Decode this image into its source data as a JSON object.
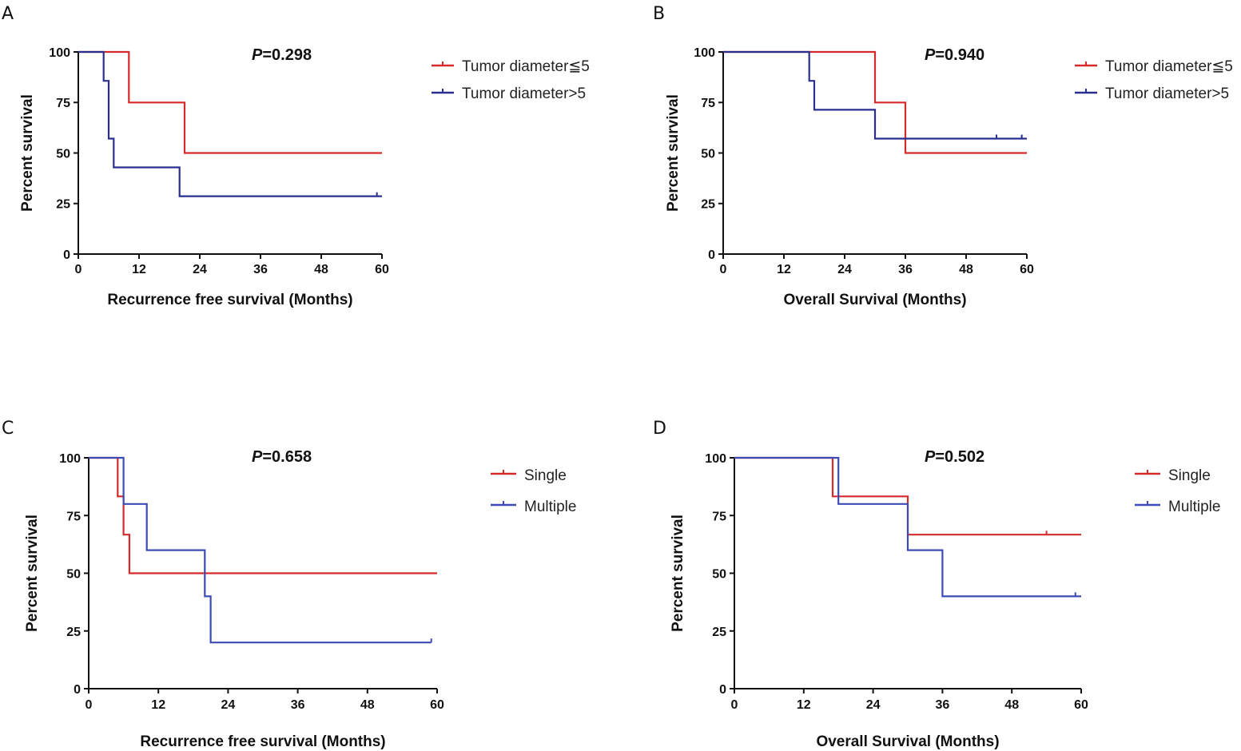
{
  "colors": {
    "red": "#d62a2a",
    "blue": "#2a2f8f",
    "blue_light": "#3c4bb5",
    "red_faint": "#f08080"
  },
  "chart_data": [
    {
      "panel": "A",
      "type": "line",
      "subtype": "kaplan-meier",
      "xlabel": "Recurrence free survival (Months)",
      "ylabel": "Percent survival",
      "xticks": [
        "0",
        "12",
        "24",
        "36",
        "48",
        "60"
      ],
      "yticks": [
        "0",
        "25",
        "50",
        "75",
        "100"
      ],
      "xlim": [
        0,
        60
      ],
      "ylim": [
        0,
        100
      ],
      "p_prefix": "P",
      "p_value": "=0.298",
      "legend": [
        "Tumor diameter≦5",
        "Tumor diameter>5"
      ],
      "series": [
        {
          "name": "Tumor diameter≦5",
          "color": "#d62a2a",
          "steps": [
            [
              0,
              100
            ],
            [
              10,
              100
            ],
            [
              10,
              75
            ],
            [
              21,
              75
            ],
            [
              21,
              50
            ],
            [
              60,
              50
            ]
          ],
          "censors": []
        },
        {
          "name": "Tumor diameter>5",
          "color": "#2a2f8f",
          "steps": [
            [
              0,
              100
            ],
            [
              5,
              100
            ],
            [
              5,
              85.7
            ],
            [
              6,
              85.7
            ],
            [
              6,
              57.1
            ],
            [
              7,
              57.1
            ],
            [
              7,
              42.9
            ],
            [
              20,
              42.9
            ],
            [
              20,
              28.6
            ],
            [
              60,
              28.6
            ]
          ],
          "censors": [
            [
              59,
              28.6
            ]
          ]
        }
      ]
    },
    {
      "panel": "B",
      "type": "line",
      "subtype": "kaplan-meier",
      "xlabel": "Overall Survival (Months)",
      "ylabel": "Percent survival",
      "xticks": [
        "0",
        "12",
        "24",
        "36",
        "48",
        "60"
      ],
      "yticks": [
        "0",
        "25",
        "50",
        "75",
        "100"
      ],
      "xlim": [
        0,
        60
      ],
      "ylim": [
        0,
        100
      ],
      "p_prefix": "P",
      "p_value": "=0.940",
      "legend": [
        "Tumor diameter≦5",
        "Tumor diameter>5"
      ],
      "series": [
        {
          "name": "Tumor diameter≦5",
          "color": "#d62a2a",
          "steps": [
            [
              0,
              100
            ],
            [
              30,
              100
            ],
            [
              30,
              75
            ],
            [
              36,
              75
            ],
            [
              36,
              50
            ],
            [
              60,
              50
            ]
          ],
          "censors": []
        },
        {
          "name": "Tumor diameter>5",
          "color": "#2a2f8f",
          "steps": [
            [
              0,
              100
            ],
            [
              17,
              100
            ],
            [
              17,
              85.7
            ],
            [
              18,
              85.7
            ],
            [
              18,
              71.4
            ],
            [
              30,
              71.4
            ],
            [
              30,
              57.1
            ],
            [
              60,
              57.1
            ]
          ],
          "censors": [
            [
              54,
              57.1
            ],
            [
              59,
              57.1
            ]
          ]
        }
      ]
    },
    {
      "panel": "C",
      "type": "line",
      "subtype": "kaplan-meier",
      "xlabel": "Recurrence free survival (Months)",
      "ylabel": "Percent survival",
      "xticks": [
        "0",
        "12",
        "24",
        "36",
        "48",
        "60"
      ],
      "yticks": [
        "0",
        "25",
        "50",
        "75",
        "100"
      ],
      "xlim": [
        0,
        60
      ],
      "ylim": [
        0,
        100
      ],
      "p_prefix": "P",
      "p_value": "=0.658",
      "legend": [
        "Single",
        "Multiple"
      ],
      "series": [
        {
          "name": "Single",
          "color": "#d62a2a",
          "steps": [
            [
              0,
              100
            ],
            [
              5,
              100
            ],
            [
              5,
              83.3
            ],
            [
              6,
              83.3
            ],
            [
              6,
              66.7
            ],
            [
              7,
              66.7
            ],
            [
              7,
              50
            ],
            [
              60,
              50
            ]
          ],
          "censors": []
        },
        {
          "name": "Multiple",
          "color": "#3c4bb5",
          "steps": [
            [
              0,
              100
            ],
            [
              6,
              100
            ],
            [
              6,
              80
            ],
            [
              10,
              80
            ],
            [
              10,
              60
            ],
            [
              20,
              60
            ],
            [
              20,
              40
            ],
            [
              21,
              40
            ],
            [
              21,
              20
            ],
            [
              59,
              20
            ]
          ],
          "censors": [
            [
              59,
              20
            ]
          ]
        }
      ]
    },
    {
      "panel": "D",
      "type": "line",
      "subtype": "kaplan-meier",
      "xlabel": "Overall Survival (Months)",
      "ylabel": "Percent survival",
      "xticks": [
        "0",
        "12",
        "24",
        "36",
        "48",
        "60"
      ],
      "yticks": [
        "0",
        "25",
        "50",
        "75",
        "100"
      ],
      "xlim": [
        0,
        60
      ],
      "ylim": [
        0,
        100
      ],
      "p_prefix": "P",
      "p_value": "=0.502",
      "legend": [
        "Single",
        "Multiple"
      ],
      "series": [
        {
          "name": "Single",
          "color": "#d62a2a",
          "steps": [
            [
              0,
              100
            ],
            [
              17,
              100
            ],
            [
              17,
              83.3
            ],
            [
              30,
              83.3
            ],
            [
              30,
              66.7
            ],
            [
              60,
              66.7
            ]
          ],
          "censors": [
            [
              54,
              66.7
            ]
          ]
        },
        {
          "name": "Multiple",
          "color": "#3c4bb5",
          "steps": [
            [
              0,
              100
            ],
            [
              18,
              100
            ],
            [
              18,
              80
            ],
            [
              30,
              80
            ],
            [
              30,
              60
            ],
            [
              36,
              60
            ],
            [
              36,
              40
            ],
            [
              60,
              40
            ]
          ],
          "censors": [
            [
              59,
              40
            ]
          ]
        }
      ]
    }
  ]
}
